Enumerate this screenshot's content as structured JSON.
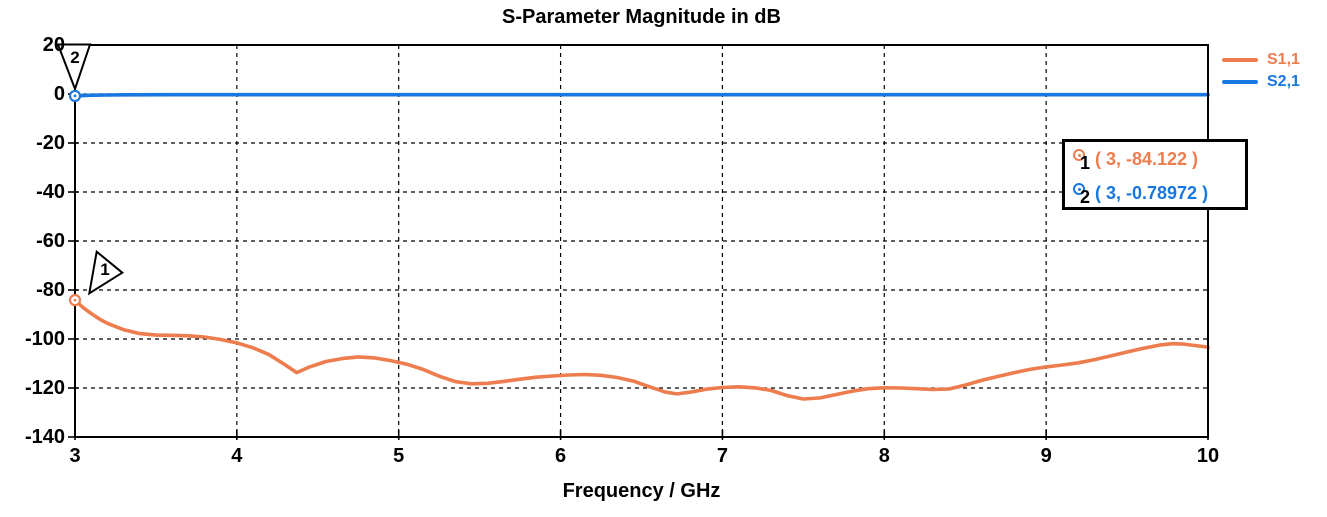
{
  "chart_data": {
    "type": "line",
    "title": "S-Parameter Magnitude in dB",
    "xlabel": "Frequency / GHz",
    "ylabel": "",
    "xlim": [
      3,
      10
    ],
    "ylim": [
      -140,
      20
    ],
    "xticks": [
      3,
      4,
      5,
      6,
      7,
      8,
      9,
      10
    ],
    "yticks": [
      20,
      0,
      -20,
      -40,
      -60,
      -80,
      -100,
      -120,
      -140
    ],
    "grid": "dashed",
    "legend_position": "top-right-outside",
    "series": [
      {
        "name": "S1,1",
        "color": "#ED7D4E",
        "points": [
          [
            3,
            -84.12
          ],
          [
            3.05,
            -87.2
          ],
          [
            3.1,
            -89.6
          ],
          [
            3.15,
            -91.8
          ],
          [
            3.2,
            -93.6
          ],
          [
            3.3,
            -96.2
          ],
          [
            3.4,
            -97.8
          ],
          [
            3.5,
            -98.4
          ],
          [
            3.6,
            -98.5
          ],
          [
            3.7,
            -98.7
          ],
          [
            3.8,
            -99.2
          ],
          [
            3.9,
            -100.2
          ],
          [
            4,
            -101.6
          ],
          [
            4.1,
            -103.6
          ],
          [
            4.2,
            -106.4
          ],
          [
            4.3,
            -110.6
          ],
          [
            4.37,
            -113.7
          ],
          [
            4.45,
            -111.4
          ],
          [
            4.55,
            -109.2
          ],
          [
            4.65,
            -108
          ],
          [
            4.75,
            -107.3
          ],
          [
            4.85,
            -107.7
          ],
          [
            4.95,
            -108.8
          ],
          [
            5.05,
            -110.3
          ],
          [
            5.15,
            -112.4
          ],
          [
            5.25,
            -115.2
          ],
          [
            5.35,
            -117.4
          ],
          [
            5.45,
            -118.3
          ],
          [
            5.55,
            -118.1
          ],
          [
            5.65,
            -117.3
          ],
          [
            5.75,
            -116.4
          ],
          [
            5.85,
            -115.6
          ],
          [
            5.95,
            -115.1
          ],
          [
            6.05,
            -114.7
          ],
          [
            6.15,
            -114.5
          ],
          [
            6.25,
            -114.8
          ],
          [
            6.35,
            -115.7
          ],
          [
            6.45,
            -117.2
          ],
          [
            6.55,
            -119.5
          ],
          [
            6.65,
            -121.7
          ],
          [
            6.72,
            -122.4
          ],
          [
            6.8,
            -121.7
          ],
          [
            6.9,
            -120.5
          ],
          [
            7,
            -119.8
          ],
          [
            7.1,
            -119.5
          ],
          [
            7.2,
            -119.9
          ],
          [
            7.3,
            -121
          ],
          [
            7.4,
            -123.1
          ],
          [
            7.5,
            -124.5
          ],
          [
            7.6,
            -124.1
          ],
          [
            7.7,
            -122.7
          ],
          [
            7.8,
            -121.3
          ],
          [
            7.9,
            -120.3
          ],
          [
            8,
            -119.9
          ],
          [
            8.1,
            -120
          ],
          [
            8.2,
            -120.3
          ],
          [
            8.3,
            -120.6
          ],
          [
            8.4,
            -120.4
          ],
          [
            8.5,
            -118.8
          ],
          [
            8.6,
            -116.9
          ],
          [
            8.7,
            -115.3
          ],
          [
            8.8,
            -113.8
          ],
          [
            8.9,
            -112.4
          ],
          [
            9,
            -111.4
          ],
          [
            9.1,
            -110.6
          ],
          [
            9.2,
            -109.7
          ],
          [
            9.3,
            -108.4
          ],
          [
            9.4,
            -106.9
          ],
          [
            9.5,
            -105.3
          ],
          [
            9.6,
            -103.8
          ],
          [
            9.7,
            -102.5
          ],
          [
            9.78,
            -101.9
          ],
          [
            9.85,
            -102.1
          ],
          [
            9.95,
            -102.9
          ],
          [
            10,
            -103.3
          ]
        ]
      },
      {
        "name": "S2,1",
        "color": "#1877E0",
        "points": [
          [
            3,
            -0.79
          ],
          [
            3.06,
            -0.58
          ],
          [
            3.12,
            -0.47
          ],
          [
            3.2,
            -0.4
          ],
          [
            3.35,
            -0.33
          ],
          [
            3.6,
            -0.3
          ],
          [
            4,
            -0.29
          ],
          [
            5,
            -0.28
          ],
          [
            6,
            -0.28
          ],
          [
            7,
            -0.28
          ],
          [
            8,
            -0.28
          ],
          [
            9,
            -0.28
          ],
          [
            10,
            -0.28
          ]
        ]
      }
    ]
  },
  "markers": [
    {
      "number": "1",
      "series": "S1,1",
      "x": 3,
      "y": -84.122,
      "readout": "( 3, -84.122 )",
      "color": "#ED7D4E"
    },
    {
      "number": "2",
      "series": "S2,1",
      "x": 3,
      "y": -0.78972,
      "readout": "( 3, -0.78972 )",
      "color": "#1877E0"
    }
  ],
  "frame_color": "#000000",
  "grid_color": "#000000"
}
